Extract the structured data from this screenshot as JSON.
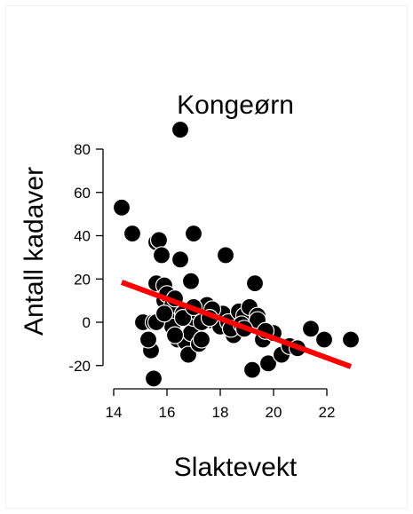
{
  "chart_data": {
    "type": "scatter",
    "title": "Kongeørn",
    "xlabel": "Slaktevekt",
    "ylabel": "Antall kadaver",
    "xlim": [
      14,
      23
    ],
    "ylim": [
      -28,
      90
    ],
    "xticks": [
      "14",
      "16",
      "18",
      "20",
      "22"
    ],
    "yticks": [
      "-20",
      "0",
      "20",
      "40",
      "60",
      "80"
    ],
    "grid": false,
    "series": [
      {
        "x": [
          14.3,
          14.7,
          15.1,
          15.4,
          15.5,
          15.5,
          15.6,
          15.6,
          15.7,
          15.8,
          15.9,
          15.9,
          16.0,
          16.1,
          16.2,
          16.2,
          16.3,
          16.4,
          16.5,
          16.5,
          16.6,
          16.7,
          16.8,
          16.9,
          16.9,
          17.0,
          17.0,
          17.1,
          17.2,
          17.3,
          17.5,
          17.6,
          17.8,
          18.0,
          18.1,
          18.2,
          18.3,
          18.5,
          18.7,
          18.9,
          19.1,
          19.2,
          19.3,
          19.4,
          19.5,
          19.6,
          19.8,
          20.0,
          20.3,
          20.6,
          20.9,
          21.4,
          21.9,
          22.9,
          15.6,
          15.9,
          16.6,
          17.0,
          17.3,
          17.7,
          18.4,
          18.8,
          19.4,
          19.7,
          16.3,
          17.6,
          18.9,
          15.3
        ],
        "y": [
          53,
          41,
          0,
          -13,
          -26,
          0,
          37,
          18,
          38,
          31,
          17,
          10,
          13,
          5,
          8,
          -2,
          11,
          -8,
          29,
          89,
          4,
          -9,
          -15,
          19,
          -5,
          41,
          2,
          5,
          -10,
          -8,
          8,
          1,
          3,
          -2,
          4,
          31,
          0,
          -6,
          5,
          3,
          7,
          -22,
          18,
          3,
          -2,
          -8,
          -19,
          -5,
          -15,
          -11,
          -12,
          -3,
          -8,
          -8,
          0,
          4,
          2,
          7,
          0,
          6,
          -3,
          -1,
          1,
          -4,
          -6,
          2,
          -3,
          -8
        ],
        "color": "#000000"
      }
    ],
    "fit_line": {
      "x": [
        14.3,
        22.9
      ],
      "y": [
        18.5,
        -20.5
      ],
      "color": "#ff0000"
    }
  }
}
